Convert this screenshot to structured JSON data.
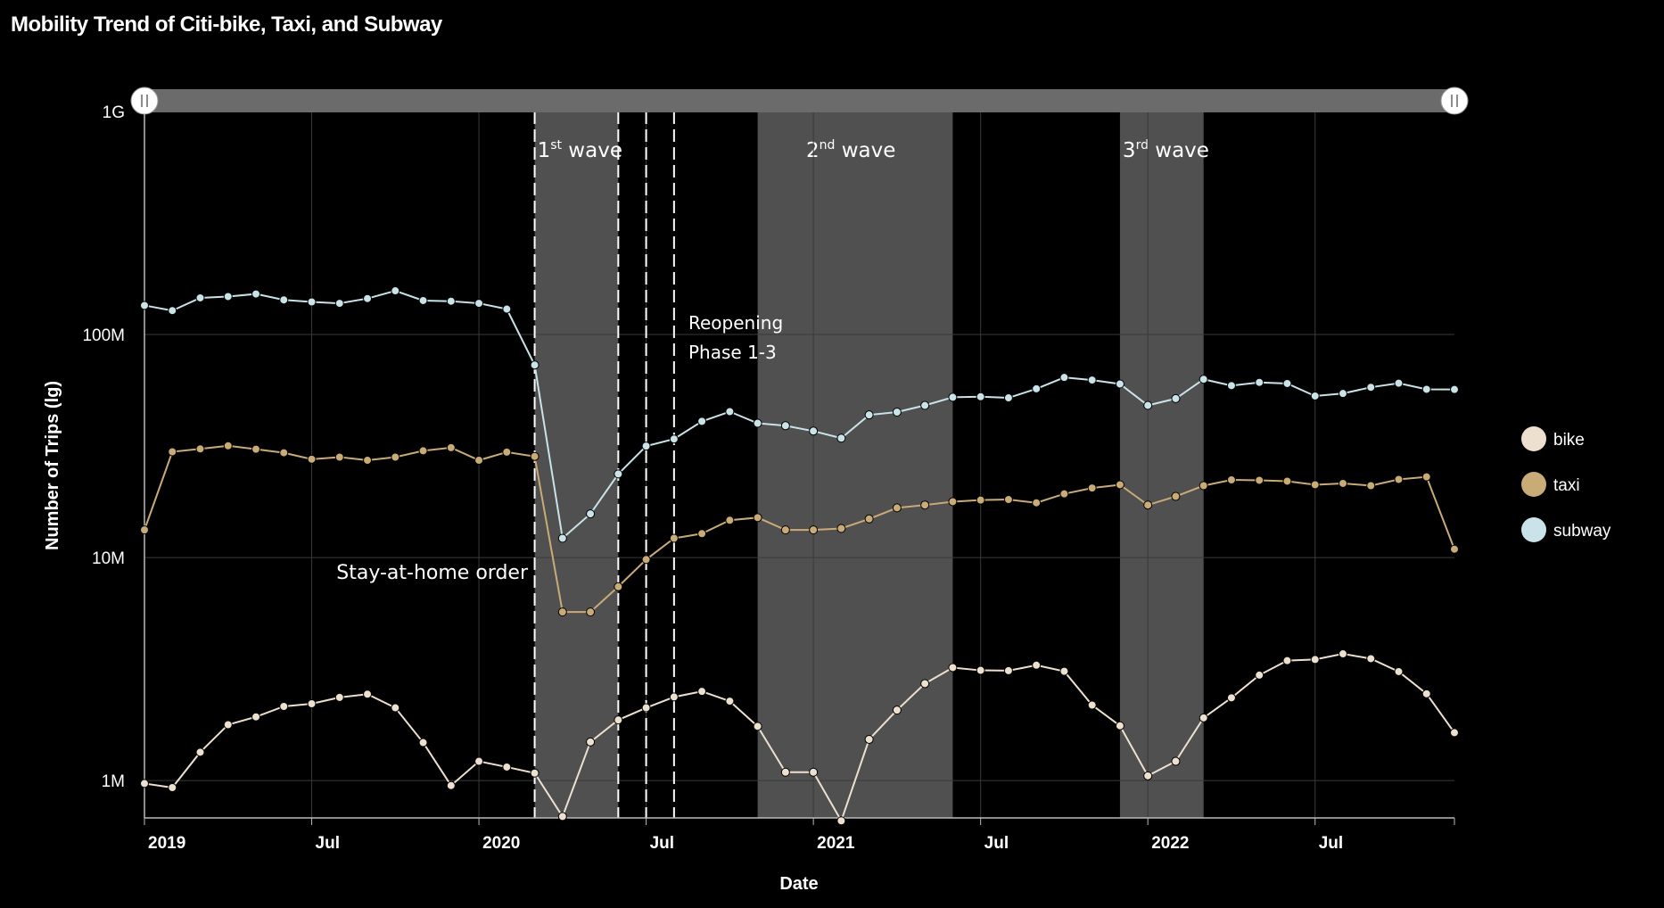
{
  "title": "Mobility Trend of Citi-bike, Taxi, and Subway",
  "colors": {
    "bike": "#ede0cf",
    "taxi": "#c9ab77",
    "subway": "#c9e3e8",
    "band": "#505050",
    "slider": "#6b6b6b"
  },
  "chart_data": {
    "type": "line",
    "title": "Mobility Trend of Citi-bike, Taxi, and Subway",
    "xlabel": "Date",
    "ylabel": "Number of Trips (lg)",
    "y_scale": "log10",
    "ylim": [
      680000,
      1000000000
    ],
    "xlim": [
      "2019-01",
      "2022-12"
    ],
    "y_ticks": [
      {
        "value": 1000000,
        "label": "1M"
      },
      {
        "value": 10000000,
        "label": "10M"
      },
      {
        "value": 100000000,
        "label": "100M"
      },
      {
        "value": 1000000000,
        "label": "1G"
      }
    ],
    "x_ticks": [
      {
        "value": "2019-01",
        "label": "2019",
        "bold": true
      },
      {
        "value": "2019-07",
        "label": "Jul",
        "bold": false
      },
      {
        "value": "2020-01",
        "label": "2020",
        "bold": true
      },
      {
        "value": "2020-07",
        "label": "Jul",
        "bold": false
      },
      {
        "value": "2021-01",
        "label": "2021",
        "bold": true
      },
      {
        "value": "2021-07",
        "label": "Jul",
        "bold": false
      },
      {
        "value": "2022-01",
        "label": "2022",
        "bold": true
      },
      {
        "value": "2022-07",
        "label": "Jul",
        "bold": false
      }
    ],
    "grid": true,
    "legend_position": "right",
    "x": [
      "2019-01",
      "2019-02",
      "2019-03",
      "2019-04",
      "2019-05",
      "2019-06",
      "2019-07",
      "2019-08",
      "2019-09",
      "2019-10",
      "2019-11",
      "2019-12",
      "2020-01",
      "2020-02",
      "2020-03",
      "2020-04",
      "2020-05",
      "2020-06",
      "2020-07",
      "2020-08",
      "2020-09",
      "2020-10",
      "2020-11",
      "2020-12",
      "2021-01",
      "2021-02",
      "2021-03",
      "2021-04",
      "2021-05",
      "2021-06",
      "2021-07",
      "2021-08",
      "2021-09",
      "2021-10",
      "2021-11",
      "2021-12",
      "2022-01",
      "2022-02",
      "2022-03",
      "2022-04",
      "2022-05",
      "2022-06",
      "2022-07",
      "2022-08",
      "2022-09",
      "2022-10",
      "2022-11",
      "2022-12"
    ],
    "series": [
      {
        "name": "bike",
        "color": "#ede0cf",
        "values": [
          970000,
          930000,
          1340000,
          1780000,
          1930000,
          2150000,
          2210000,
          2360000,
          2440000,
          2120000,
          1480000,
          950000,
          1220000,
          1150000,
          1080000,
          690000,
          1490000,
          1870000,
          2120000,
          2370000,
          2510000,
          2270000,
          1750000,
          1090000,
          1090000,
          660000,
          1530000,
          2070000,
          2720000,
          3210000,
          3120000,
          3110000,
          3290000,
          3090000,
          2180000,
          1760000,
          1050000,
          1220000,
          1910000,
          2350000,
          2970000,
          3450000,
          3490000,
          3700000,
          3520000,
          3080000,
          2450000,
          1640000
        ]
      },
      {
        "name": "taxi",
        "color": "#c9ab77",
        "values": [
          13300000,
          29800000,
          30700000,
          31700000,
          30600000,
          29500000,
          27600000,
          28200000,
          27300000,
          28200000,
          30100000,
          31100000,
          27300000,
          29700000,
          28400000,
          5700000,
          5700000,
          7400000,
          9800000,
          12200000,
          12800000,
          14700000,
          15100000,
          13300000,
          13300000,
          13500000,
          14900000,
          16700000,
          17200000,
          17800000,
          18100000,
          18200000,
          17600000,
          19300000,
          20500000,
          21200000,
          17200000,
          18800000,
          21000000,
          22300000,
          22200000,
          22000000,
          21200000,
          21500000,
          21000000,
          22400000,
          23000000,
          10900000
        ]
      },
      {
        "name": "subway",
        "color": "#c9e3e8",
        "values": [
          135000000,
          128000000,
          146000000,
          148000000,
          152000000,
          143000000,
          140000000,
          138000000,
          145000000,
          157000000,
          142000000,
          141000000,
          138000000,
          130000000,
          73000000,
          12200000,
          15700000,
          23700000,
          31600000,
          34000000,
          40800000,
          45100000,
          40000000,
          39000000,
          36900000,
          34300000,
          43600000,
          44900000,
          48100000,
          52300000,
          52600000,
          52000000,
          57100000,
          64200000,
          62500000,
          60000000,
          48100000,
          51600000,
          63000000,
          59000000,
          61000000,
          60300000,
          53000000,
          54400000,
          58000000,
          60500000,
          56800000,
          56700000
        ]
      }
    ],
    "bands": [
      {
        "start": "2020-03",
        "end": "2020-06",
        "label_base": "1",
        "label_sup": "st",
        "label_rest": " wave"
      },
      {
        "start": "2020-11",
        "end": "2021-06",
        "label_base": "2",
        "label_sup": "nd",
        "label_rest": " wave"
      },
      {
        "start": "2021-12",
        "end": "2022-03",
        "label_base": "3",
        "label_sup": "rd",
        "label_rest": " wave"
      }
    ],
    "event_lines": [
      "2020-03",
      "2020-06",
      "2020-07",
      "2020-08"
    ],
    "annotations": {
      "stay_at_home": "Stay-at-home order",
      "reopening_line1": "Reopening",
      "reopening_line2": "Phase 1-3"
    }
  }
}
